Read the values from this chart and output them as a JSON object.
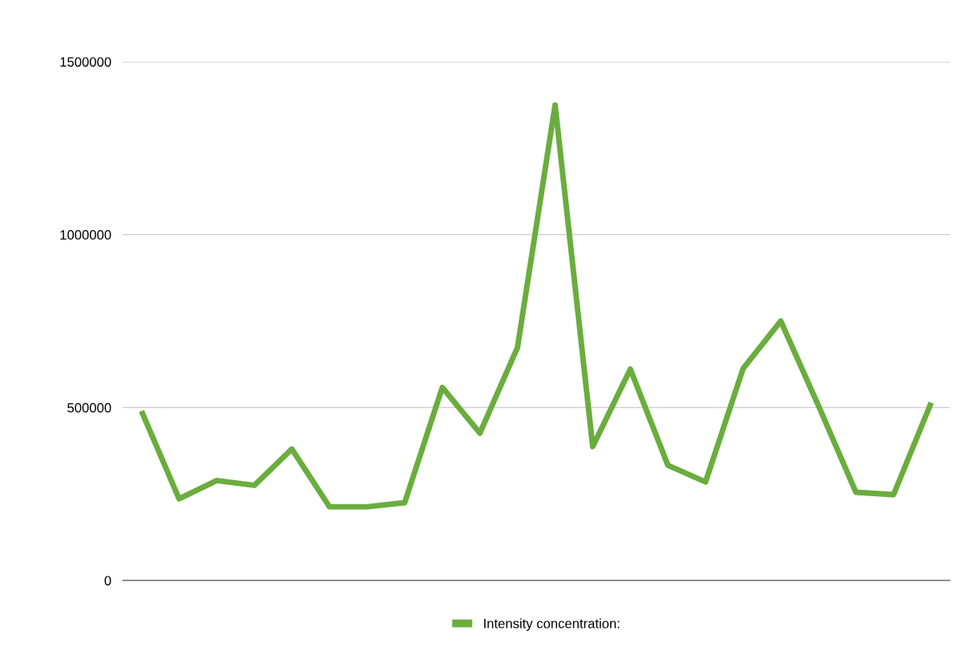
{
  "chart_data": {
    "type": "line",
    "categories": [
      null,
      null,
      null,
      null,
      null,
      null,
      null,
      null,
      null,
      null,
      null,
      null,
      null,
      null,
      null,
      null,
      null,
      null,
      null,
      null,
      null,
      null
    ],
    "series": [
      {
        "name": "Intensity concentration:",
        "color": "#6aad3d",
        "values": [
          490000,
          236000,
          289000,
          275000,
          380000,
          213000,
          213000,
          225000,
          558000,
          426000,
          674000,
          1375000,
          387000,
          611000,
          333000,
          285000,
          613000,
          750000,
          506000,
          255000,
          248000,
          514000
        ]
      }
    ],
    "ylim": [
      0,
      1500000
    ],
    "yticks": [
      0,
      500000,
      1000000,
      1500000
    ],
    "grid": "y",
    "legend": "bottom",
    "marker": "none",
    "line_style": "solid"
  }
}
